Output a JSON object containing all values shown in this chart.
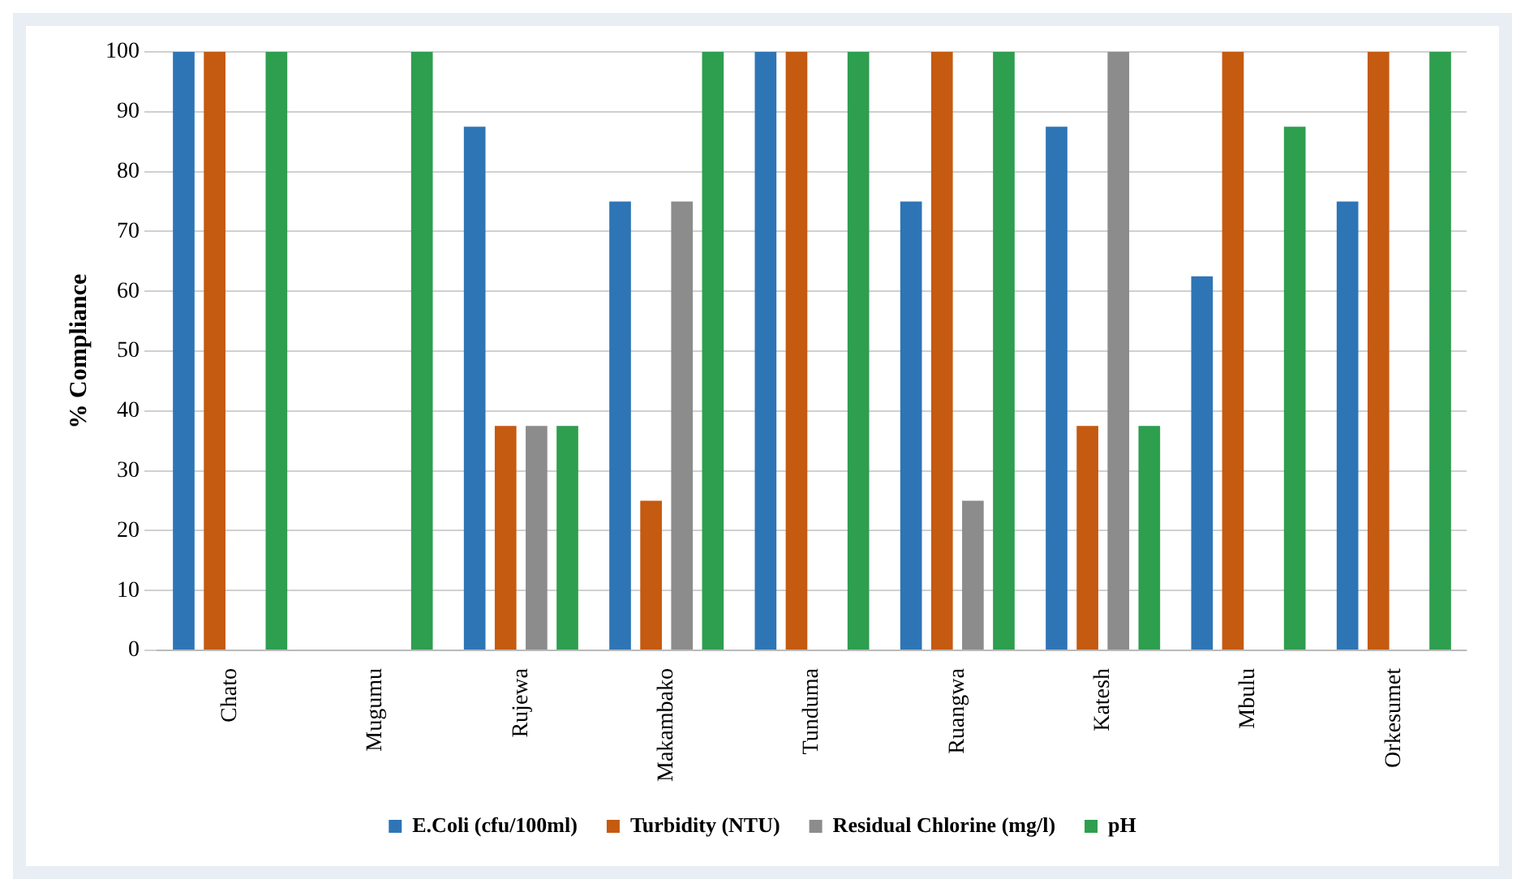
{
  "chart_data": {
    "type": "bar",
    "ylabel": "% Compliance",
    "categories": [
      "Chato",
      "Mugumu",
      "Rujewa",
      "Makambako",
      "Tunduma",
      "Ruangwa",
      "Katesh",
      "Mbulu",
      "Orkesumet"
    ],
    "series": [
      {
        "name": "E.Coli (cfu/100ml)",
        "color": "#2e75b6",
        "values": [
          100,
          0,
          87.5,
          75,
          100,
          75,
          87.5,
          62.5,
          75
        ]
      },
      {
        "name": "Turbidity (NTU)",
        "color": "#c55a11",
        "values": [
          100,
          0,
          37.5,
          25,
          100,
          100,
          37.5,
          100,
          100
        ]
      },
      {
        "name": "Residual Chlorine (mg/l)",
        "color": "#8c8c8c",
        "values": [
          0,
          0,
          37.5,
          75,
          0,
          25,
          100,
          0,
          0
        ]
      },
      {
        "name": "pH",
        "color": "#2e9e4f",
        "values": [
          100,
          100,
          37.5,
          100,
          100,
          100,
          37.5,
          87.5,
          100
        ]
      }
    ],
    "ylim": [
      0,
      100
    ],
    "yticks": [
      0,
      10,
      20,
      30,
      40,
      50,
      60,
      70,
      80,
      90,
      100
    ],
    "grid": "y",
    "legend": "bottom"
  }
}
